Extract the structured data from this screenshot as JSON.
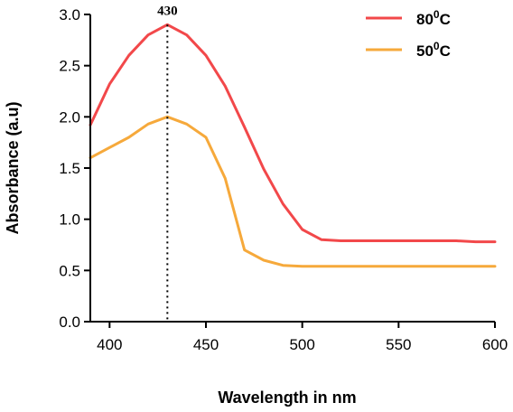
{
  "chart_data": {
    "type": "line",
    "xlabel": "Wavelength in nm",
    "ylabel": "Absorbance (a.u)",
    "xlim": [
      390,
      600
    ],
    "ylim": [
      0,
      3.0
    ],
    "x_ticks": [
      400,
      450,
      500,
      550,
      600
    ],
    "y_ticks": [
      0.0,
      0.5,
      1.0,
      1.5,
      2.0,
      2.5,
      3.0
    ],
    "x_tick_labels": [
      "400",
      "450",
      "500",
      "550",
      "600"
    ],
    "y_tick_labels": [
      "0.0",
      "0.5",
      "1.0",
      "1.5",
      "2.0",
      "2.5",
      "3.0"
    ],
    "grid": false,
    "legend_position": "top-right",
    "annotation": {
      "text": "430",
      "x": 430
    },
    "series": [
      {
        "name_base": "80",
        "name_sup": "0",
        "name_unit": "C",
        "color": "#f2484a",
        "x": [
          390,
          395,
          400,
          410,
          420,
          430,
          440,
          450,
          460,
          470,
          480,
          490,
          500,
          510,
          520,
          540,
          560,
          580,
          590,
          600
        ],
        "y": [
          1.92,
          2.12,
          2.32,
          2.6,
          2.8,
          2.9,
          2.8,
          2.6,
          2.3,
          1.9,
          1.49,
          1.15,
          0.9,
          0.8,
          0.79,
          0.79,
          0.79,
          0.79,
          0.78,
          0.78
        ]
      },
      {
        "name_base": "50",
        "name_sup": "0",
        "name_unit": "C",
        "color": "#f6a93b",
        "x": [
          390,
          400,
          410,
          420,
          430,
          440,
          450,
          460,
          470,
          480,
          490,
          500,
          520,
          550,
          600
        ],
        "y": [
          1.6,
          1.7,
          1.8,
          1.93,
          2.0,
          1.93,
          1.8,
          1.4,
          0.7,
          0.6,
          0.55,
          0.54,
          0.54,
          0.54,
          0.54
        ]
      }
    ]
  }
}
